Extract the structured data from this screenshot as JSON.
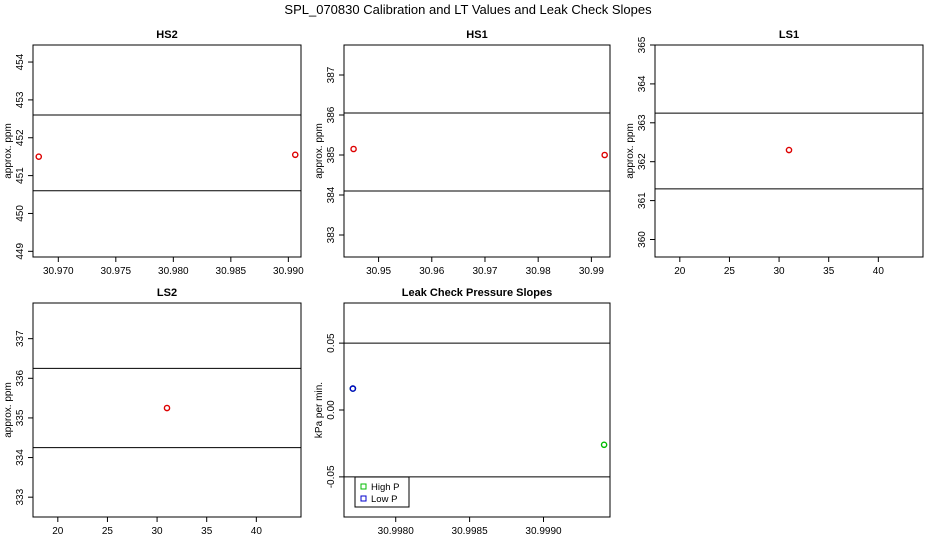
{
  "figure": {
    "title": "SPL_070830  Calibration and LT Values and Leak Check Slopes"
  },
  "chart_data": [
    {
      "type": "scatter",
      "title": "HS2",
      "ylabel": "approx. ppm",
      "xlim": [
        30.9678,
        30.9911
      ],
      "ylim": [
        448.85,
        454.45
      ],
      "xticks": [
        "30.970",
        "30.975",
        "30.980",
        "30.985",
        "30.990"
      ],
      "xtick_values": [
        30.97,
        30.975,
        30.98,
        30.985,
        30.99
      ],
      "yticks": [
        "449",
        "450",
        "451",
        "452",
        "453",
        "454"
      ],
      "ytick_values": [
        449,
        450,
        451,
        452,
        453,
        454
      ],
      "hlines": [
        450.6,
        452.6
      ],
      "series": [
        {
          "color": "#dd0000",
          "points": [
            [
              30.9683,
              451.5
            ],
            [
              30.9906,
              451.55
            ]
          ]
        }
      ]
    },
    {
      "type": "scatter",
      "title": "HS1",
      "ylabel": "approx. ppm",
      "xlim": [
        30.9435,
        30.9935
      ],
      "ylim": [
        382.45,
        387.75
      ],
      "xticks": [
        "30.95",
        "30.96",
        "30.97",
        "30.98",
        "30.99"
      ],
      "xtick_values": [
        30.95,
        30.96,
        30.97,
        30.98,
        30.99
      ],
      "yticks": [
        "383",
        "384",
        "385",
        "386",
        "387"
      ],
      "ytick_values": [
        383,
        384,
        385,
        386,
        387
      ],
      "hlines": [
        384.1,
        386.05
      ],
      "series": [
        {
          "color": "#dd0000",
          "points": [
            [
              30.9453,
              385.15
            ],
            [
              30.9925,
              385.0
            ]
          ]
        }
      ]
    },
    {
      "type": "scatter",
      "title": "LS1",
      "ylabel": "approx. ppm",
      "xlim": [
        17.5,
        44.5
      ],
      "ylim": [
        359.55,
        365.0
      ],
      "xticks": [
        "20",
        "25",
        "30",
        "35",
        "40"
      ],
      "xtick_values": [
        20,
        25,
        30,
        35,
        40
      ],
      "yticks": [
        "360",
        "361",
        "362",
        "363",
        "364",
        "365"
      ],
      "ytick_values": [
        360,
        361,
        362,
        363,
        364,
        365
      ],
      "hlines": [
        361.3,
        363.25
      ],
      "series": [
        {
          "color": "#dd0000",
          "points": [
            [
              31,
              362.3
            ]
          ]
        }
      ]
    },
    {
      "type": "scatter",
      "title": "LS2",
      "ylabel": "approx. ppm",
      "xlim": [
        17.5,
        44.5
      ],
      "ylim": [
        332.5,
        337.9
      ],
      "xticks": [
        "20",
        "25",
        "30",
        "35",
        "40"
      ],
      "xtick_values": [
        20,
        25,
        30,
        35,
        40
      ],
      "yticks": [
        "333",
        "334",
        "335",
        "336",
        "337"
      ],
      "ytick_values": [
        333,
        334,
        335,
        336,
        337
      ],
      "hlines": [
        334.25,
        336.25
      ],
      "series": [
        {
          "color": "#dd0000",
          "points": [
            [
              31,
              335.25
            ]
          ]
        }
      ]
    },
    {
      "type": "scatter",
      "title": "Leak Check Pressure Slopes",
      "ylabel": "kPa per min.",
      "xlim": [
        30.99765,
        30.99945
      ],
      "ylim": [
        -0.08,
        0.08
      ],
      "xticks": [
        "30.9980",
        "30.9985",
        "30.9990"
      ],
      "xtick_values": [
        30.998,
        30.9985,
        30.999
      ],
      "yticks": [
        "-0.05",
        "0.00",
        "0.05"
      ],
      "ytick_values": [
        -0.05,
        0.0,
        0.05
      ],
      "hlines": [
        -0.05,
        0.05
      ],
      "series": [
        {
          "name": "High P",
          "color": "#00bb00",
          "points": [
            [
              30.99771,
              0.016
            ],
            [
              30.99941,
              -0.026
            ]
          ]
        },
        {
          "name": "Low P",
          "color": "#0000cc",
          "points": [
            [
              30.99771,
              0.016
            ]
          ]
        }
      ],
      "legend": "bottom-left"
    }
  ]
}
